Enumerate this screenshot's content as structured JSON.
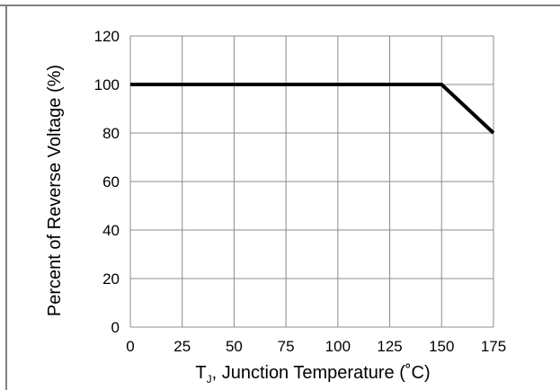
{
  "chart_data": {
    "type": "line",
    "title": "",
    "xlabel": {
      "prefix": "T",
      "subscript": "J",
      "suffix": ", Junction Temperature (˚C)"
    },
    "ylabel": "Percent of Reverse Voltage (%)",
    "x_ticks": [
      "0",
      "25",
      "50",
      "75",
      "100",
      "125",
      "150",
      "175"
    ],
    "y_ticks": [
      "0",
      "20",
      "40",
      "60",
      "80",
      "100",
      "120"
    ],
    "xlim": [
      0,
      175
    ],
    "ylim": [
      0,
      120
    ],
    "grid": true,
    "legend": "none",
    "series": [
      {
        "x": [
          0,
          150,
          175
        ],
        "y": [
          100,
          100,
          80
        ],
        "color": "#000000"
      }
    ]
  },
  "colors": {
    "frame": "#808080",
    "grid": "#8c8c8c",
    "line": "#000000"
  }
}
